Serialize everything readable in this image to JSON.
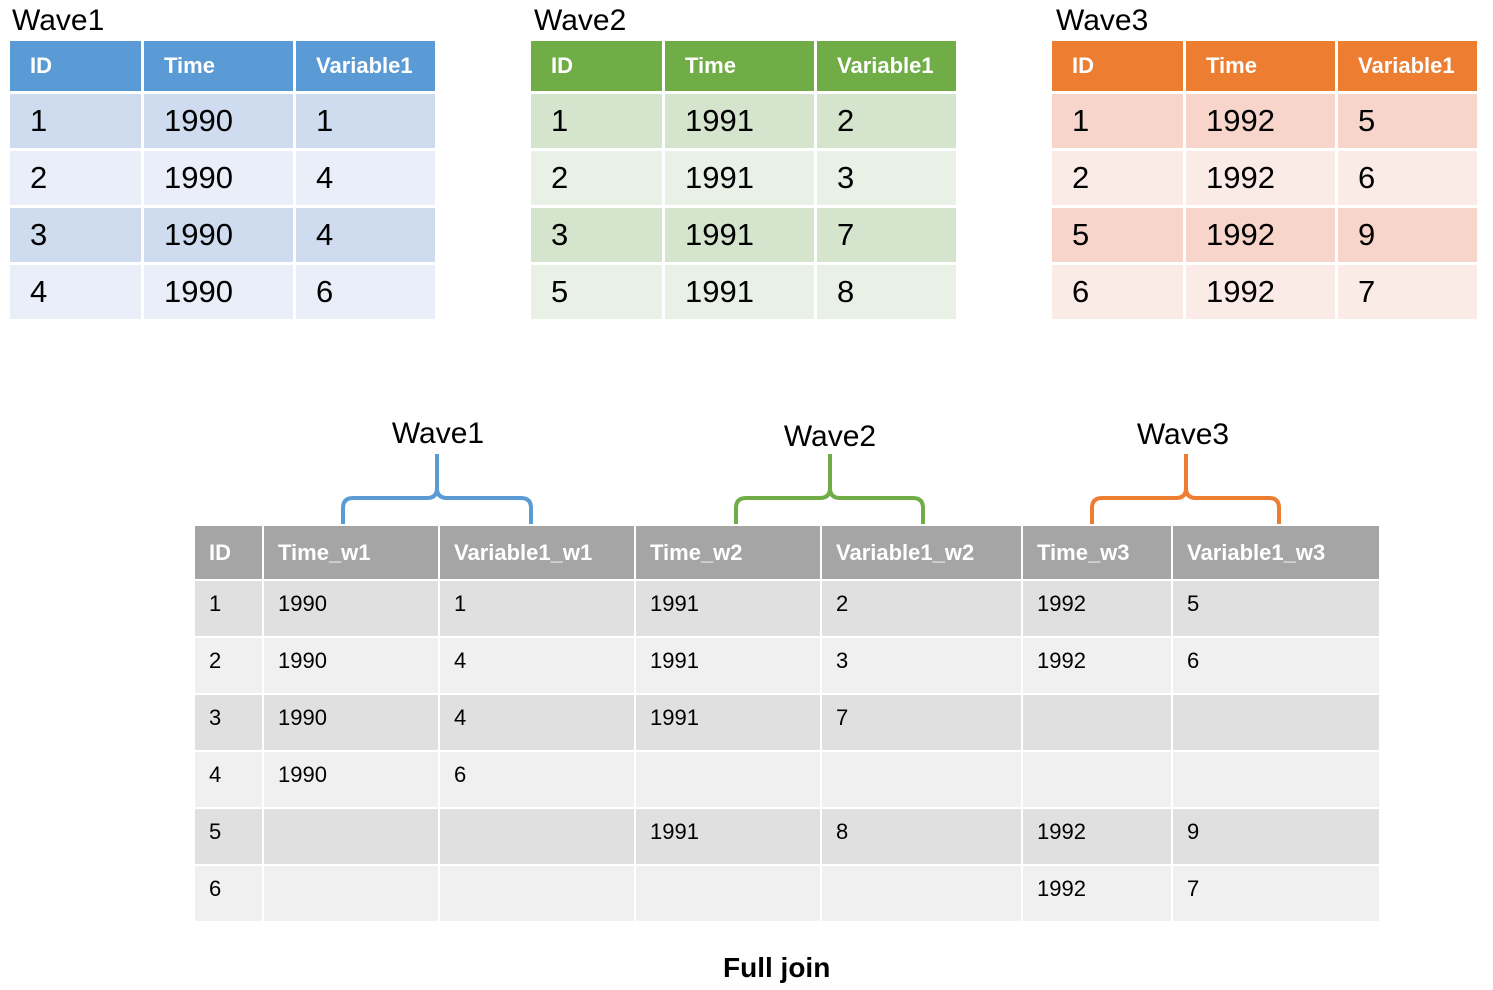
{
  "wave1": {
    "title": "Wave1",
    "headers": [
      "ID",
      "Time",
      "Variable1"
    ],
    "rows": [
      [
        "1",
        "1990",
        "1"
      ],
      [
        "2",
        "1990",
        "4"
      ],
      [
        "3",
        "1990",
        "4"
      ],
      [
        "4",
        "1990",
        "6"
      ]
    ],
    "color": "#5b9bd5"
  },
  "wave2": {
    "title": "Wave2",
    "headers": [
      "ID",
      "Time",
      "Variable1"
    ],
    "rows": [
      [
        "1",
        "1991",
        "2"
      ],
      [
        "2",
        "1991",
        "3"
      ],
      [
        "3",
        "1991",
        "7"
      ],
      [
        "5",
        "1991",
        "8"
      ]
    ],
    "color": "#70ad47"
  },
  "wave3": {
    "title": "Wave3",
    "headers": [
      "ID",
      "Time",
      "Variable1"
    ],
    "rows": [
      [
        "1",
        "1992",
        "5"
      ],
      [
        "2",
        "1992",
        "6"
      ],
      [
        "5",
        "1992",
        "9"
      ],
      [
        "6",
        "1992",
        "7"
      ]
    ],
    "color": "#ed7d31"
  },
  "braces": [
    "Wave1",
    "Wave2",
    "Wave3"
  ],
  "joined": {
    "headers": [
      "ID",
      "Time_w1",
      "Variable1_w1",
      "Time_w2",
      "Variable1_w2",
      "Time_w3",
      "Variable1_w3"
    ],
    "rows": [
      [
        "1",
        "1990",
        "1",
        "1991",
        "2",
        "1992",
        "5"
      ],
      [
        "2",
        "1990",
        "4",
        "1991",
        "3",
        "1992",
        "6"
      ],
      [
        "3",
        "1990",
        "4",
        "1991",
        "7",
        "",
        ""
      ],
      [
        "4",
        "1990",
        "6",
        "",
        "",
        "",
        ""
      ],
      [
        "5",
        "",
        "",
        "1991",
        "8",
        "1992",
        "9"
      ],
      [
        "6",
        "",
        "",
        "",
        "",
        "1992",
        "7"
      ]
    ],
    "color": "#a5a5a5"
  },
  "footer": "Full join"
}
